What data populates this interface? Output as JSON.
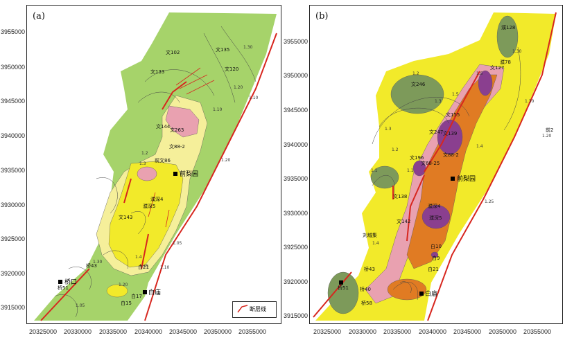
{
  "panels": [
    {
      "label": "(a)"
    },
    {
      "label": "(b)"
    }
  ],
  "y_axis_ticks": [
    "3955000",
    "3950000",
    "3945000",
    "3940000",
    "3935000",
    "3930000",
    "3925000",
    "3920000",
    "3915000"
  ],
  "x_axis_ticks": [
    "20325000",
    "20330000",
    "20335000",
    "20340000",
    "20345000",
    "20350000",
    "20355000"
  ],
  "legend": {
    "fault_label": "断层线"
  },
  "colors": {
    "light_green": "#a6d36a",
    "yellow_light": "#f5ef9a",
    "yellow": "#f2ea2a",
    "pink": "#e9a1b0",
    "orange": "#e07b23",
    "purple": "#8a3f8f",
    "dark_green": "#7d9a5a",
    "fault_red": "#d7261e"
  },
  "places": {
    "qianliyuan": "前梨园",
    "qiaokou": "桥口",
    "baimiao": "白庙",
    "baimiao_b": "白庙"
  },
  "wells_a": [
    "文102",
    "文135",
    "文120",
    "文133",
    "文88-2",
    "文144",
    "文263",
    "前文86",
    "濮深4",
    "濮深5",
    "文143",
    "白21",
    "白17",
    "白15",
    "桥51",
    "桥43"
  ],
  "wells_b": [
    "濮128",
    "濮78",
    "文127",
    "文246",
    "文139",
    "文247",
    "文155",
    "文196",
    "文138",
    "文88-2",
    "文68-25",
    "文142",
    "濮深4",
    "濮深5",
    "白10",
    "白21",
    "白9",
    "桥43",
    "桥40",
    "桥51",
    "桥58",
    "刘城集",
    "前2"
  ],
  "contours_a": [
    "1.30",
    "1.20",
    "1.10",
    "1.10",
    "1.2",
    "1.25",
    "1.3",
    "1.4",
    "1.30",
    "1.20",
    "1.05",
    "1.10",
    "1.20",
    "1.05"
  ],
  "contours_b": [
    "1.30",
    "1.2",
    "1.3",
    "1.5",
    "1.4",
    "1.3",
    "1.2",
    "1.1",
    "1.4",
    "1.20",
    "1.30",
    "1.5",
    "1.1",
    "1.25"
  ]
}
